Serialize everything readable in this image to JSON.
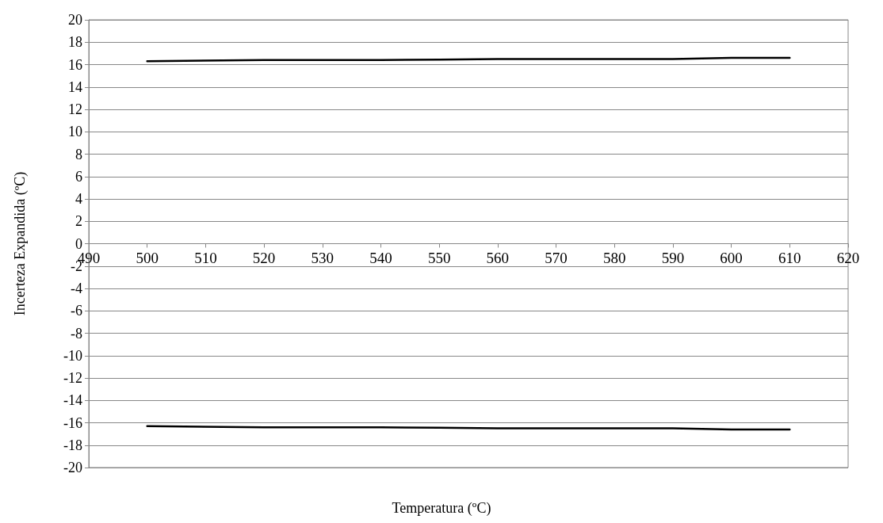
{
  "chart_data": {
    "type": "line",
    "xlabel": "Temperatura (ºC)",
    "ylabel": "Incerteza Expandida (ºC)",
    "x": [
      500,
      520,
      540,
      550,
      560,
      590,
      600,
      610
    ],
    "series": [
      {
        "color": "#000000",
        "values": [
          16.3,
          16.4,
          16.4,
          16.45,
          16.5,
          16.5,
          16.6,
          16.6
        ]
      },
      {
        "color": "#000000",
        "values": [
          -16.3,
          -16.4,
          -16.4,
          -16.45,
          -16.5,
          -16.5,
          -16.6,
          -16.6
        ]
      }
    ],
    "xlim": [
      490,
      620
    ],
    "xticks": [
      490,
      500,
      510,
      520,
      530,
      540,
      550,
      560,
      570,
      580,
      590,
      600,
      610,
      620
    ],
    "ylim": [
      -20,
      20
    ],
    "yticks": [
      -20,
      -18,
      -16,
      -14,
      -12,
      -10,
      -8,
      -6,
      -4,
      -2,
      0,
      2,
      4,
      6,
      8,
      10,
      12,
      14,
      16,
      18,
      20
    ],
    "grid": "y",
    "marker": "none",
    "line_style": "solid"
  }
}
